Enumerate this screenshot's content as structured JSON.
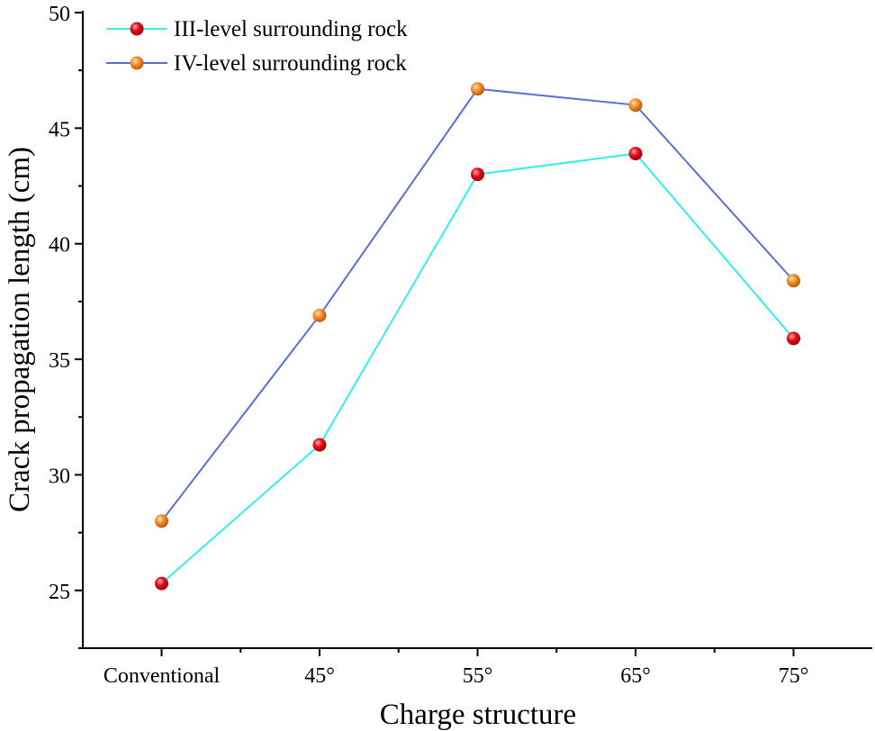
{
  "chart_data": {
    "type": "line",
    "categories": [
      "Conventional",
      "45°",
      "55°",
      "65°",
      "75°"
    ],
    "series": [
      {
        "name": "III-level surrounding rock",
        "values": [
          25.3,
          31.3,
          43.0,
          43.9,
          35.9
        ],
        "line_color": "#33eeee",
        "marker_color": "#e8101a"
      },
      {
        "name": "IV-level surrounding rock",
        "values": [
          28.0,
          36.9,
          46.7,
          46.0,
          38.4
        ],
        "line_color": "#5a6fd6",
        "marker_color": "#f5922f"
      }
    ],
    "xlabel": "Charge structure",
    "ylabel": "Crack propagation length (cm)",
    "ylim": [
      22.5,
      50
    ],
    "yticks": [
      25,
      30,
      35,
      40,
      45,
      50
    ],
    "legend_position": "top-left",
    "grid": false
  }
}
